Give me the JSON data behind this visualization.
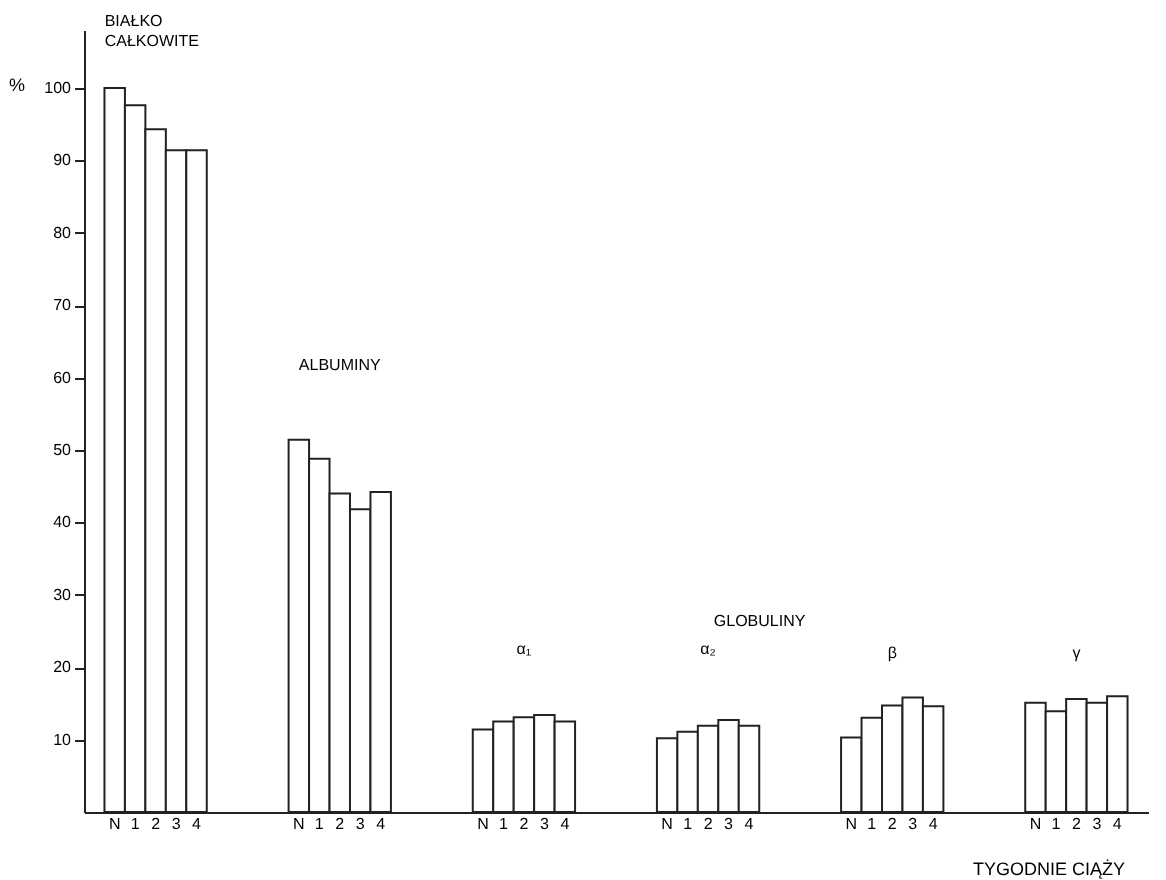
{
  "chart_data": {
    "type": "bar",
    "categories": [
      "N",
      "1",
      "2",
      "3",
      "4",
      null,
      null,
      null,
      null,
      "N",
      "1",
      "2",
      "3",
      "4",
      null,
      null,
      null,
      null,
      "N",
      "1",
      "2",
      "3",
      "4",
      null,
      null,
      null,
      null,
      "N",
      "1",
      "2",
      "3",
      "4",
      null,
      null,
      null,
      null,
      "N",
      "1",
      "2",
      "3",
      "4",
      null,
      null,
      null,
      null,
      "N",
      "1",
      "2",
      "3",
      "4"
    ],
    "values": [
      100,
      97.6,
      94.3,
      91.4,
      91.4,
      null,
      null,
      null,
      null,
      51.4,
      48.8,
      44.0,
      41.8,
      44.2,
      null,
      null,
      null,
      null,
      11.4,
      12.5,
      13.1,
      13.4,
      12.5,
      null,
      null,
      null,
      null,
      10.2,
      11.1,
      11.9,
      12.7,
      11.9,
      null,
      null,
      null,
      null,
      10.3,
      13.0,
      14.7,
      15.8,
      14.6,
      null,
      null,
      null,
      null,
      15.1,
      13.9,
      15.6,
      15.1,
      16.0
    ],
    "color": "#ffffff",
    "ylabel": "%",
    "xlabel": "TYGODNIE CIĄŻY",
    "annotations": [
      "BIAŁKO CAŁKOWITE",
      "ALBUMINY",
      "GLOBULINY",
      "α₁",
      "α₂",
      "β",
      "γ"
    ],
    "ylim": [
      0,
      108
    ],
    "yticks": [
      10,
      20,
      30,
      40,
      50,
      60,
      70,
      80,
      90,
      100
    ],
    "grid": false
  }
}
